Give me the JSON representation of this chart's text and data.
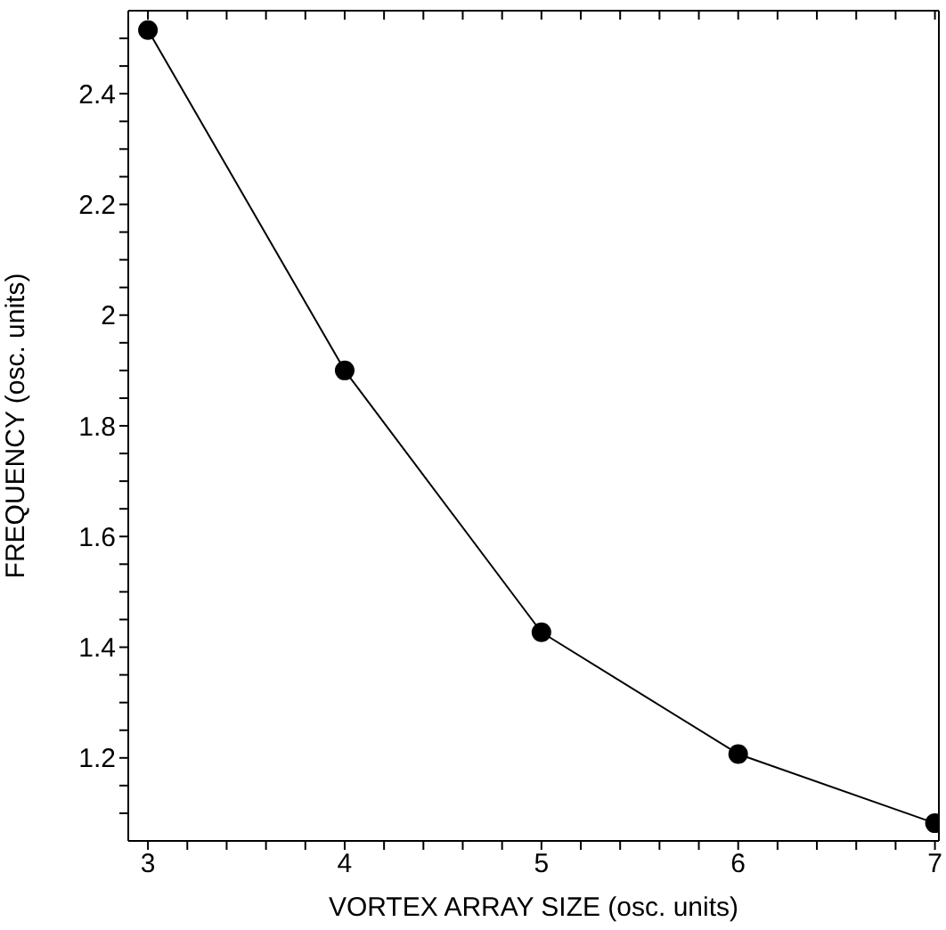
{
  "chart_data": {
    "type": "line",
    "xlabel": "VORTEX ARRAY SIZE (osc. units)",
    "ylabel": "FREQUENCY (osc. units)",
    "x": [
      3,
      4,
      5,
      6,
      7
    ],
    "series": [
      {
        "color": "#000000",
        "values": [
          2.515,
          1.9,
          1.427,
          1.207,
          1.082
        ]
      }
    ],
    "xlim": [
      2.9,
      7.02
    ],
    "xticks": [
      3,
      {
        "value": 3.2,
        "label": null
      },
      {
        "value": 3.4,
        "label": null
      },
      {
        "value": 3.6,
        "label": null
      },
      {
        "value": 3.8,
        "label": null
      },
      4,
      {
        "value": 4.2,
        "label": null
      },
      {
        "value": 4.4,
        "label": null
      },
      {
        "value": 4.6,
        "label": null
      },
      {
        "value": 4.8,
        "label": null
      },
      5,
      {
        "value": 5.2,
        "label": null
      },
      {
        "value": 5.4,
        "label": null
      },
      {
        "value": 5.6,
        "label": null
      },
      {
        "value": 5.8,
        "label": null
      },
      6,
      {
        "value": 6.2,
        "label": null
      },
      {
        "value": 6.4,
        "label": null
      },
      {
        "value": 6.6,
        "label": null
      },
      {
        "value": 6.8,
        "label": null
      },
      7
    ],
    "ylim": [
      1.05,
      2.55
    ],
    "yticks": [
      {
        "value": 1.1,
        "label": null
      },
      {
        "value": 1.15,
        "label": null
      },
      1.2,
      {
        "value": 1.25,
        "label": null
      },
      {
        "value": 1.3,
        "label": null
      },
      {
        "value": 1.35,
        "label": null
      },
      1.4,
      {
        "value": 1.45,
        "label": null
      },
      {
        "value": 1.5,
        "label": null
      },
      {
        "value": 1.55,
        "label": null
      },
      1.6,
      {
        "value": 1.65,
        "label": null
      },
      {
        "value": 1.7,
        "label": null
      },
      {
        "value": 1.75,
        "label": null
      },
      1.8,
      {
        "value": 1.85,
        "label": null
      },
      {
        "value": 1.9,
        "label": null
      },
      {
        "value": 1.95,
        "label": null
      },
      2,
      {
        "value": 2.05,
        "label": null
      },
      {
        "value": 2.1,
        "label": null
      },
      {
        "value": 2.15,
        "label": null
      },
      2.2,
      {
        "value": 2.25,
        "label": null
      },
      {
        "value": 2.3,
        "label": null
      },
      {
        "value": 2.35,
        "label": null
      },
      2.4,
      {
        "value": 2.45,
        "label": null
      },
      {
        "value": 2.5,
        "label": null
      }
    ],
    "marker": "circle",
    "line_style": "solid",
    "grid": false
  }
}
